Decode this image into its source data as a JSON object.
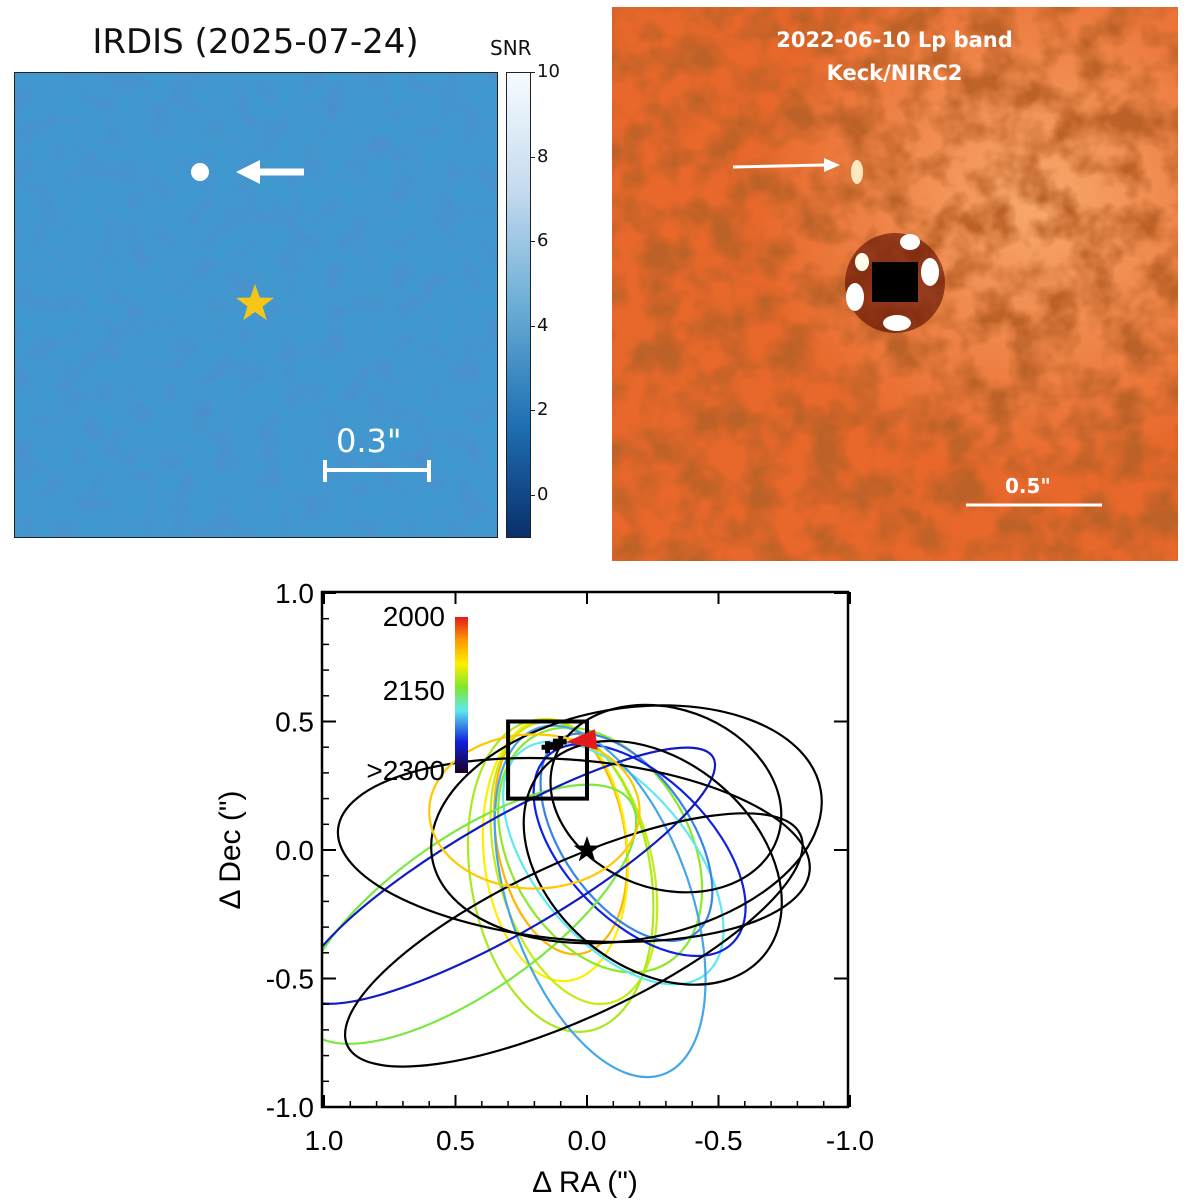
{
  "left_panel": {
    "title": "IRDIS (2025-07-24)",
    "colorbar_label": "SNR",
    "colorbar_ticks": [
      "10",
      "8",
      "6",
      "4",
      "2",
      "0"
    ],
    "colorbar_range": [
      -1,
      10
    ],
    "scale_bar_label": "0.3\"",
    "colors": {
      "background": "#0d4f97",
      "star": "#f5c518"
    }
  },
  "right_panel": {
    "title_line1": "2022-06-10 Lp band",
    "title_line2": "Keck/NIRC2",
    "scale_bar_label": "0.5\"",
    "colors": {
      "background": "#d4471a"
    }
  },
  "chart_data": {
    "type": "line",
    "xlabel": "Δ RA (\")",
    "ylabel": "Δ Dec (\")",
    "xlim": [
      1.0,
      -1.0
    ],
    "ylim": [
      -1.0,
      1.0
    ],
    "xticks": [
      "1.0",
      "0.5",
      "0.0",
      "-0.5",
      "-1.0"
    ],
    "yticks": [
      "1.0",
      "0.5",
      "0.0",
      "-0.5",
      "-1.0"
    ],
    "colorbar": {
      "labels": [
        "2000",
        "2150",
        ">2300"
      ],
      "range": [
        2000,
        2300
      ],
      "placement": "top-left"
    },
    "star_position": [
      0.0,
      0.0
    ],
    "detections": [
      [
        0.15,
        0.4
      ],
      [
        0.12,
        0.41
      ],
      [
        0.1,
        0.42
      ]
    ],
    "zoom_box": {
      "ra": [
        0.3,
        0.0
      ],
      "dec": [
        0.2,
        0.5
      ]
    },
    "orbits": [
      {
        "cx": 0.1,
        "cy": 0.05,
        "a": 0.45,
        "b": 0.25,
        "rot": 80,
        "year": 2060
      },
      {
        "cx": 0.12,
        "cy": 0.0,
        "a": 0.5,
        "b": 0.28,
        "rot": 85,
        "year": 2090
      },
      {
        "cx": 0.05,
        "cy": -0.05,
        "a": 0.55,
        "b": 0.3,
        "rot": 75,
        "year": 2110
      },
      {
        "cx": -0.05,
        "cy": 0.0,
        "a": 0.5,
        "b": 0.35,
        "rot": 60,
        "year": 2130
      },
      {
        "cx": 0.1,
        "cy": -0.1,
        "a": 0.6,
        "b": 0.35,
        "rot": 80,
        "year": 2120
      },
      {
        "cx": -0.1,
        "cy": -0.05,
        "a": 0.55,
        "b": 0.3,
        "rot": 50,
        "year": 2180
      },
      {
        "cx": -0.15,
        "cy": 0.05,
        "a": 0.45,
        "b": 0.25,
        "rot": 55,
        "year": 2210
      },
      {
        "cx": -0.2,
        "cy": 0.0,
        "a": 0.5,
        "b": 0.28,
        "rot": 45,
        "year": 2240
      },
      {
        "cx": -0.05,
        "cy": -0.2,
        "a": 0.7,
        "b": 0.35,
        "rot": 70,
        "year": 2200
      },
      {
        "cx": 0.45,
        "cy": -0.25,
        "a": 0.75,
        "b": 0.3,
        "rot": -35,
        "year": 2140
      },
      {
        "cx": 0.3,
        "cy": -0.1,
        "a": 0.9,
        "b": 0.22,
        "rot": -30,
        "year": 2250
      },
      {
        "cx": 0.05,
        "cy": 0.0,
        "a": 0.9,
        "b": 0.35,
        "rot": 5,
        "year": 2350
      },
      {
        "cx": -0.3,
        "cy": 0.2,
        "a": 0.45,
        "b": 0.35,
        "rot": 20,
        "year": 2350
      },
      {
        "cx": -0.15,
        "cy": 0.1,
        "a": 0.75,
        "b": 0.45,
        "rot": -10,
        "year": 2350
      },
      {
        "cx": -0.25,
        "cy": -0.05,
        "a": 0.55,
        "b": 0.4,
        "rot": 40,
        "year": 2350
      },
      {
        "cx": 0.05,
        "cy": -0.35,
        "a": 0.95,
        "b": 0.3,
        "rot": -25,
        "year": 2350
      },
      {
        "cx": 0.2,
        "cy": 0.15,
        "a": 0.4,
        "b": 0.3,
        "rot": 0,
        "year": 2070
      }
    ]
  }
}
